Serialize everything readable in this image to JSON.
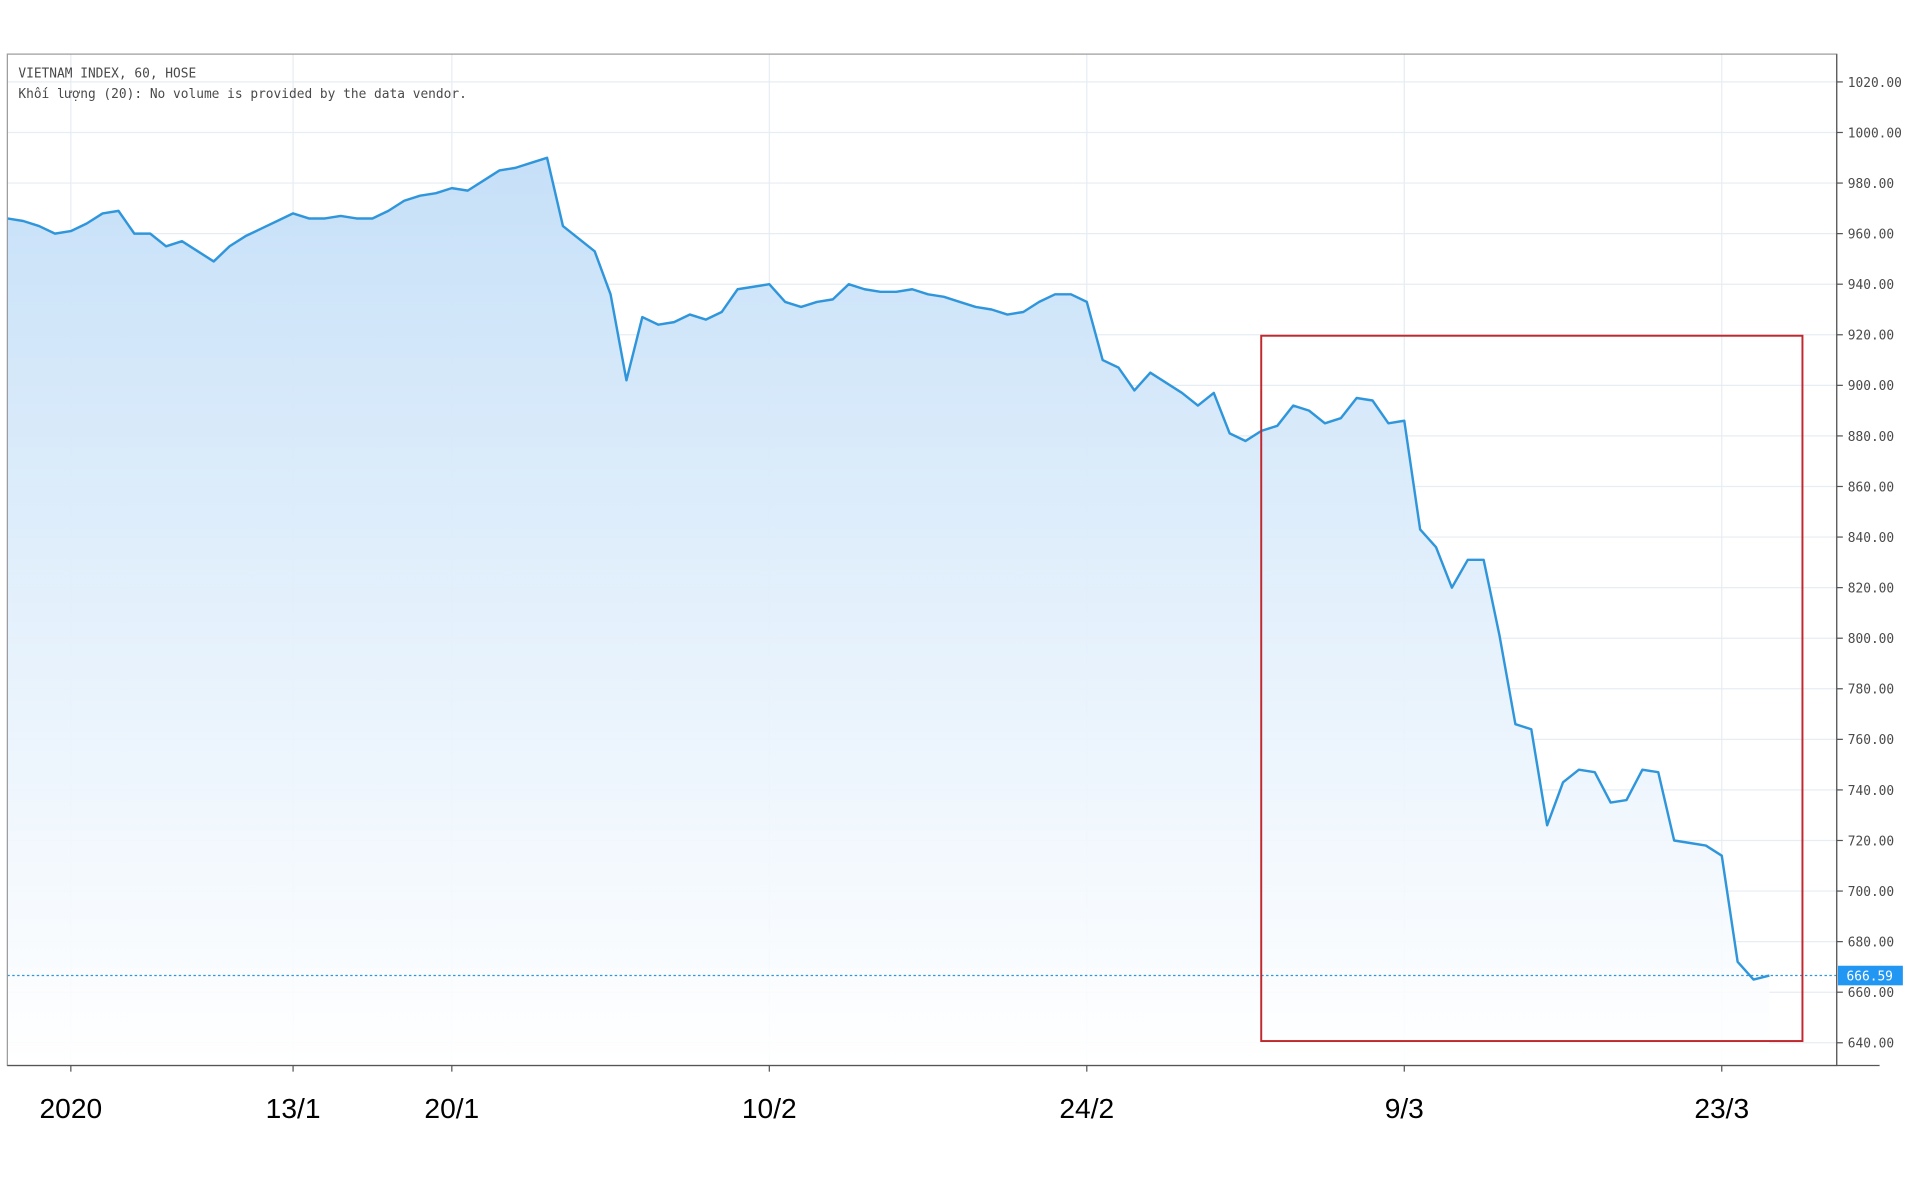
{
  "chart_data": {
    "type": "line",
    "title": "VIETNAM INDEX, 60, HOSE",
    "subtitle": "Khối lượng (20): No volume is provided by the data vendor.",
    "categories": [
      null,
      null,
      null,
      null,
      "2020",
      null,
      null,
      null,
      null,
      null,
      null,
      null,
      null,
      null,
      null,
      null,
      null,
      null,
      "13/1",
      null,
      null,
      null,
      null,
      null,
      null,
      null,
      null,
      null,
      "20/1",
      null,
      null,
      null,
      null,
      null,
      null,
      null,
      null,
      null,
      null,
      null,
      null,
      null,
      null,
      null,
      null,
      null,
      null,
      null,
      "10/2",
      null,
      null,
      null,
      null,
      null,
      null,
      null,
      null,
      null,
      null,
      null,
      null,
      null,
      null,
      null,
      null,
      null,
      null,
      null,
      "24/2",
      null,
      null,
      null,
      null,
      null,
      null,
      null,
      null,
      null,
      null,
      null,
      null,
      null,
      null,
      null,
      null,
      null,
      null,
      null,
      "9/3",
      null,
      null,
      null,
      null,
      null,
      null,
      null,
      null,
      null,
      null,
      null,
      null,
      null,
      null,
      null,
      null,
      null,
      null,
      null,
      "23/3",
      null,
      null,
      null
    ],
    "values": [
      966,
      965,
      963,
      960,
      961,
      964,
      968,
      969,
      960,
      960,
      955,
      957,
      953,
      949,
      955,
      959,
      962,
      965,
      968,
      966,
      966,
      967,
      966,
      966,
      969,
      973,
      975,
      976,
      978,
      977,
      981,
      985,
      986,
      988,
      990,
      963,
      958,
      953,
      936,
      902,
      927,
      924,
      925,
      928,
      926,
      929,
      938,
      939,
      940,
      933,
      931,
      933,
      934,
      940,
      938,
      937,
      937,
      938,
      936,
      935,
      933,
      931,
      930,
      928,
      929,
      933,
      936,
      936,
      933,
      910,
      907,
      898,
      905,
      901,
      897,
      892,
      897,
      881,
      878,
      882,
      884,
      892,
      890,
      885,
      887,
      895,
      894,
      885,
      886,
      843,
      836,
      820,
      831,
      831,
      801,
      766,
      764,
      726,
      743,
      748,
      747,
      735,
      736,
      748,
      747,
      720,
      719,
      718,
      714,
      672,
      665,
      666.59
    ],
    "color": "#2f96dc",
    "ylim": [
      631,
      1031
    ],
    "yticks": [
      {
        "value": 640,
        "label": "640.00"
      },
      {
        "value": 660,
        "label": "660.00"
      },
      {
        "value": 680,
        "label": "680.00"
      },
      {
        "value": 700,
        "label": "700.00"
      },
      {
        "value": 720,
        "label": "720.00"
      },
      {
        "value": 740,
        "label": "740.00"
      },
      {
        "value": 760,
        "label": "760.00"
      },
      {
        "value": 780,
        "label": "780.00"
      },
      {
        "value": 800,
        "label": "800.00"
      },
      {
        "value": 820,
        "label": "820.00"
      },
      {
        "value": 840,
        "label": "840.00"
      },
      {
        "value": 860,
        "label": "860.00"
      },
      {
        "value": 880,
        "label": "880.00"
      },
      {
        "value": 900,
        "label": "900.00"
      },
      {
        "value": 920,
        "label": "920.00"
      },
      {
        "value": 940,
        "label": "940.00"
      },
      {
        "value": 960,
        "label": "960.00"
      },
      {
        "value": 980,
        "label": "980.00"
      },
      {
        "value": 1000,
        "label": "1000.00"
      },
      {
        "value": 1020,
        "label": "1020.00"
      }
    ],
    "grid": true
  }
}
